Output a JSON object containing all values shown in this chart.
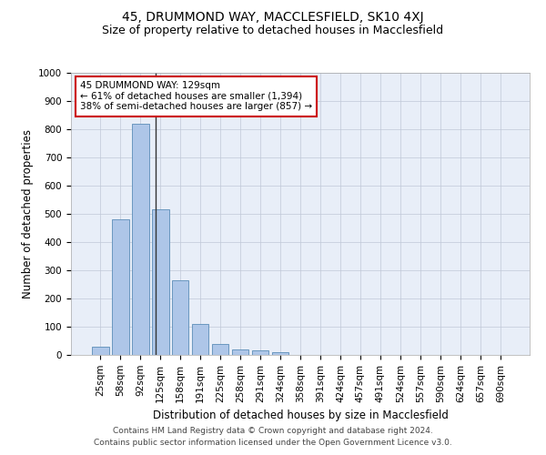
{
  "title1": "45, DRUMMOND WAY, MACCLESFIELD, SK10 4XJ",
  "title2": "Size of property relative to detached houses in Macclesfield",
  "xlabel": "Distribution of detached houses by size in Macclesfield",
  "ylabel": "Number of detached properties",
  "categories": [
    "25sqm",
    "58sqm",
    "92sqm",
    "125sqm",
    "158sqm",
    "191sqm",
    "225sqm",
    "258sqm",
    "291sqm",
    "324sqm",
    "358sqm",
    "391sqm",
    "424sqm",
    "457sqm",
    "491sqm",
    "524sqm",
    "557sqm",
    "590sqm",
    "624sqm",
    "657sqm",
    "690sqm"
  ],
  "values": [
    30,
    480,
    820,
    515,
    265,
    110,
    40,
    20,
    15,
    10,
    0,
    0,
    0,
    0,
    0,
    0,
    0,
    0,
    0,
    0,
    0
  ],
  "bar_color": "#aec6e8",
  "bar_edge_color": "#5b8db8",
  "vline_x": 2.77,
  "vline_color": "#333333",
  "annotation_text": "45 DRUMMOND WAY: 129sqm\n← 61% of detached houses are smaller (1,394)\n38% of semi-detached houses are larger (857) →",
  "annotation_box_color": "#ffffff",
  "annotation_box_edge_color": "#cc0000",
  "ylim": [
    0,
    1000
  ],
  "yticks": [
    0,
    100,
    200,
    300,
    400,
    500,
    600,
    700,
    800,
    900,
    1000
  ],
  "bg_color": "#e8eef8",
  "footer1": "Contains HM Land Registry data © Crown copyright and database right 2024.",
  "footer2": "Contains public sector information licensed under the Open Government Licence v3.0.",
  "title1_fontsize": 10,
  "title2_fontsize": 9,
  "xlabel_fontsize": 8.5,
  "ylabel_fontsize": 8.5,
  "annotation_fontsize": 7.5,
  "footer_fontsize": 6.5,
  "tick_fontsize": 7.5
}
